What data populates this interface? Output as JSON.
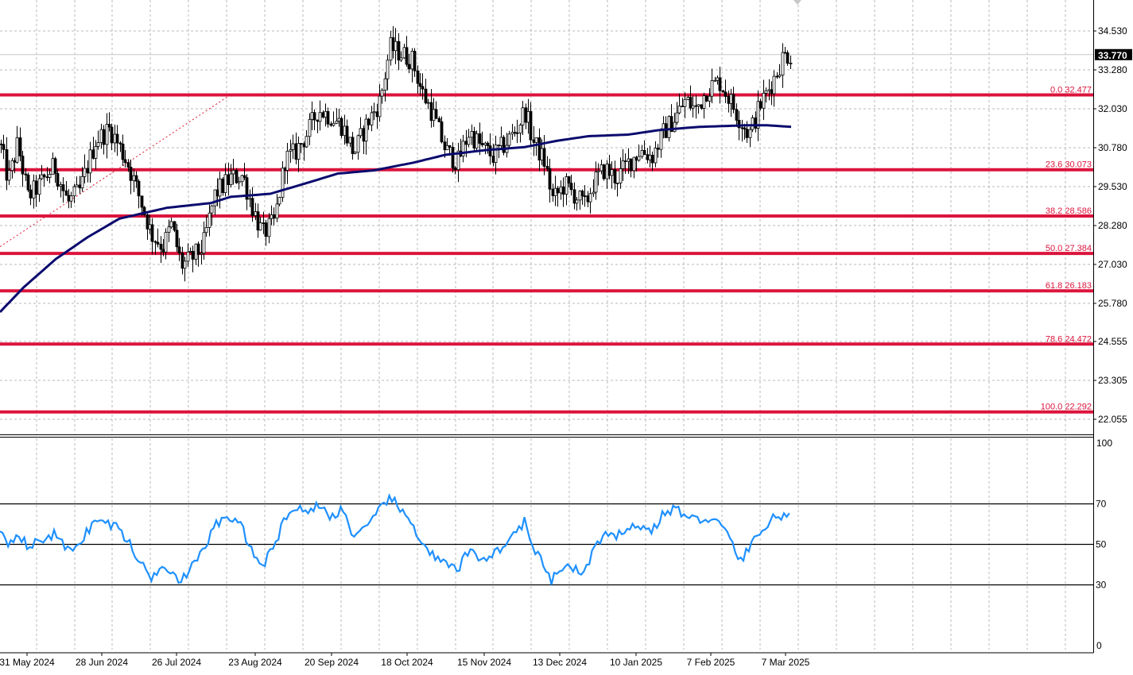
{
  "chart_data": [
    {
      "type": "candlestick",
      "title": "",
      "price_axis": {
        "ticks": [
          34.53,
          33.28,
          32.03,
          30.78,
          29.53,
          28.28,
          27.03,
          25.78,
          24.555,
          23.305,
          22.055
        ],
        "tick_labels": [
          "34.530",
          "33.280",
          "32.030",
          "30.780",
          "29.530",
          "28.280",
          "27.030",
          "25.780",
          "24.555",
          "23.305",
          "22.055"
        ],
        "range": [
          21.75,
          35.6
        ]
      },
      "current_price": 33.77,
      "current_price_label": "33.770",
      "fibonacci_levels": [
        {
          "label": "0.0 32.477",
          "value": 32.477
        },
        {
          "label": "23.6 30.073",
          "value": 30.073
        },
        {
          "label": "38.2 28.586",
          "value": 28.586
        },
        {
          "label": "50.0 27.384",
          "value": 27.384
        },
        {
          "label": "61.8 26.183",
          "value": 26.183
        },
        {
          "label": "78.6 24.472",
          "value": 24.472
        },
        {
          "label": "100.0 22.292",
          "value": 22.292
        }
      ],
      "moving_average_anchors": [
        [
          0,
          25.5
        ],
        [
          30,
          26.3
        ],
        [
          70,
          27.2
        ],
        [
          110,
          27.9
        ],
        [
          150,
          28.5
        ],
        [
          210,
          28.85
        ],
        [
          265,
          29.0
        ],
        [
          290,
          29.2
        ],
        [
          340,
          29.3
        ],
        [
          380,
          29.6
        ],
        [
          425,
          29.95
        ],
        [
          470,
          30.05
        ],
        [
          520,
          30.3
        ],
        [
          560,
          30.55
        ],
        [
          610,
          30.7
        ],
        [
          660,
          30.8
        ],
        [
          700,
          31.0
        ],
        [
          740,
          31.15
        ],
        [
          790,
          31.2
        ],
        [
          830,
          31.35
        ],
        [
          880,
          31.45
        ],
        [
          940,
          31.5
        ],
        [
          965,
          31.5
        ],
        [
          995,
          31.45
        ]
      ],
      "trendline": {
        "x": [
          0,
          290
        ],
        "y": [
          27.6,
          32.48
        ]
      },
      "ohlc_anchors": [
        [
          0,
          30.9
        ],
        [
          10,
          29.7
        ],
        [
          22,
          30.9
        ],
        [
          35,
          29.2
        ],
        [
          50,
          29.6
        ],
        [
          68,
          30.2
        ],
        [
          85,
          29.0
        ],
        [
          100,
          29.4
        ],
        [
          120,
          31.0
        ],
        [
          138,
          31.4
        ],
        [
          150,
          30.8
        ],
        [
          160,
          30.3
        ],
        [
          175,
          29.2
        ],
        [
          190,
          28.0
        ],
        [
          205,
          27.6
        ],
        [
          215,
          28.3
        ],
        [
          228,
          27.0
        ],
        [
          240,
          27.2
        ],
        [
          255,
          27.6
        ],
        [
          270,
          29.3
        ],
        [
          290,
          29.8
        ],
        [
          305,
          29.9
        ],
        [
          318,
          28.8
        ],
        [
          330,
          28.0
        ],
        [
          345,
          28.4
        ],
        [
          358,
          30.4
        ],
        [
          370,
          30.6
        ],
        [
          385,
          31.2
        ],
        [
          400,
          32.0
        ],
        [
          415,
          31.8
        ],
        [
          430,
          31.5
        ],
        [
          445,
          30.6
        ],
        [
          460,
          31.5
        ],
        [
          478,
          32.3
        ],
        [
          490,
          34.0
        ],
        [
          505,
          33.8
        ],
        [
          518,
          33.6
        ],
        [
          530,
          32.6
        ],
        [
          545,
          31.8
        ],
        [
          560,
          30.7
        ],
        [
          575,
          30.3
        ],
        [
          590,
          31.3
        ],
        [
          605,
          30.8
        ],
        [
          620,
          30.5
        ],
        [
          635,
          30.9
        ],
        [
          650,
          31.4
        ],
        [
          660,
          32.0
        ],
        [
          670,
          31.0
        ],
        [
          685,
          30.3
        ],
        [
          695,
          29.1
        ],
        [
          710,
          29.6
        ],
        [
          725,
          29.2
        ],
        [
          735,
          28.9
        ],
        [
          745,
          29.6
        ],
        [
          760,
          30.1
        ],
        [
          775,
          29.8
        ],
        [
          790,
          30.3
        ],
        [
          805,
          30.7
        ],
        [
          820,
          30.5
        ],
        [
          835,
          31.3
        ],
        [
          850,
          31.8
        ],
        [
          862,
          32.3
        ],
        [
          875,
          32.0
        ],
        [
          890,
          32.7
        ],
        [
          905,
          32.9
        ],
        [
          918,
          32.3
        ],
        [
          930,
          31.7
        ],
        [
          942,
          31.2
        ],
        [
          955,
          32.1
        ],
        [
          965,
          32.6
        ],
        [
          975,
          33.1
        ],
        [
          985,
          33.75
        ],
        [
          995,
          33.77
        ]
      ],
      "x_axis": {
        "tick_labels": [
          "31 May 2024",
          "28 Jun 2024",
          "26 Jul 2024",
          "23 Aug 2024",
          "20 Sep 2024",
          "18 Oct 2024",
          "15 Nov 2024",
          "13 Dec 2024",
          "10 Jan 2025",
          "7 Feb 2025",
          "7 Mar 2025"
        ]
      }
    },
    {
      "type": "line",
      "title": "",
      "y_axis": {
        "range": [
          0,
          100
        ],
        "tick_labels": [
          "100",
          "0"
        ]
      },
      "levels": [
        {
          "label": "70",
          "value": 70
        },
        {
          "label": "50",
          "value": 50
        },
        {
          "label": "30",
          "value": 30
        }
      ],
      "rsi_anchors": [
        [
          0,
          58
        ],
        [
          12,
          50
        ],
        [
          22,
          57
        ],
        [
          35,
          48
        ],
        [
          50,
          52
        ],
        [
          68,
          55
        ],
        [
          85,
          47
        ],
        [
          100,
          51
        ],
        [
          120,
          62
        ],
        [
          138,
          60
        ],
        [
          150,
          58
        ],
        [
          160,
          52
        ],
        [
          175,
          42
        ],
        [
          190,
          33
        ],
        [
          205,
          41
        ],
        [
          215,
          37
        ],
        [
          228,
          32
        ],
        [
          240,
          38
        ],
        [
          255,
          46
        ],
        [
          270,
          60
        ],
        [
          290,
          63
        ],
        [
          305,
          58
        ],
        [
          318,
          45
        ],
        [
          330,
          40
        ],
        [
          345,
          48
        ],
        [
          358,
          64
        ],
        [
          370,
          68
        ],
        [
          385,
          66
        ],
        [
          400,
          70
        ],
        [
          415,
          63
        ],
        [
          430,
          68
        ],
        [
          445,
          54
        ],
        [
          460,
          57
        ],
        [
          478,
          67
        ],
        [
          490,
          74
        ],
        [
          505,
          66
        ],
        [
          518,
          60
        ],
        [
          530,
          52
        ],
        [
          545,
          44
        ],
        [
          560,
          40
        ],
        [
          575,
          37
        ],
        [
          590,
          47
        ],
        [
          605,
          43
        ],
        [
          620,
          45
        ],
        [
          635,
          50
        ],
        [
          650,
          56
        ],
        [
          660,
          62
        ],
        [
          670,
          47
        ],
        [
          685,
          40
        ],
        [
          692,
          31
        ],
        [
          710,
          40
        ],
        [
          725,
          37
        ],
        [
          735,
          35
        ],
        [
          745,
          47
        ],
        [
          760,
          54
        ],
        [
          775,
          53
        ],
        [
          790,
          60
        ],
        [
          805,
          58
        ],
        [
          820,
          57
        ],
        [
          835,
          65
        ],
        [
          850,
          68
        ],
        [
          862,
          64
        ],
        [
          875,
          62
        ],
        [
          890,
          63
        ],
        [
          905,
          60
        ],
        [
          918,
          53
        ],
        [
          930,
          42
        ],
        [
          942,
          47
        ],
        [
          955,
          57
        ],
        [
          965,
          58
        ],
        [
          975,
          65
        ],
        [
          985,
          63
        ],
        [
          995,
          63
        ]
      ]
    }
  ]
}
